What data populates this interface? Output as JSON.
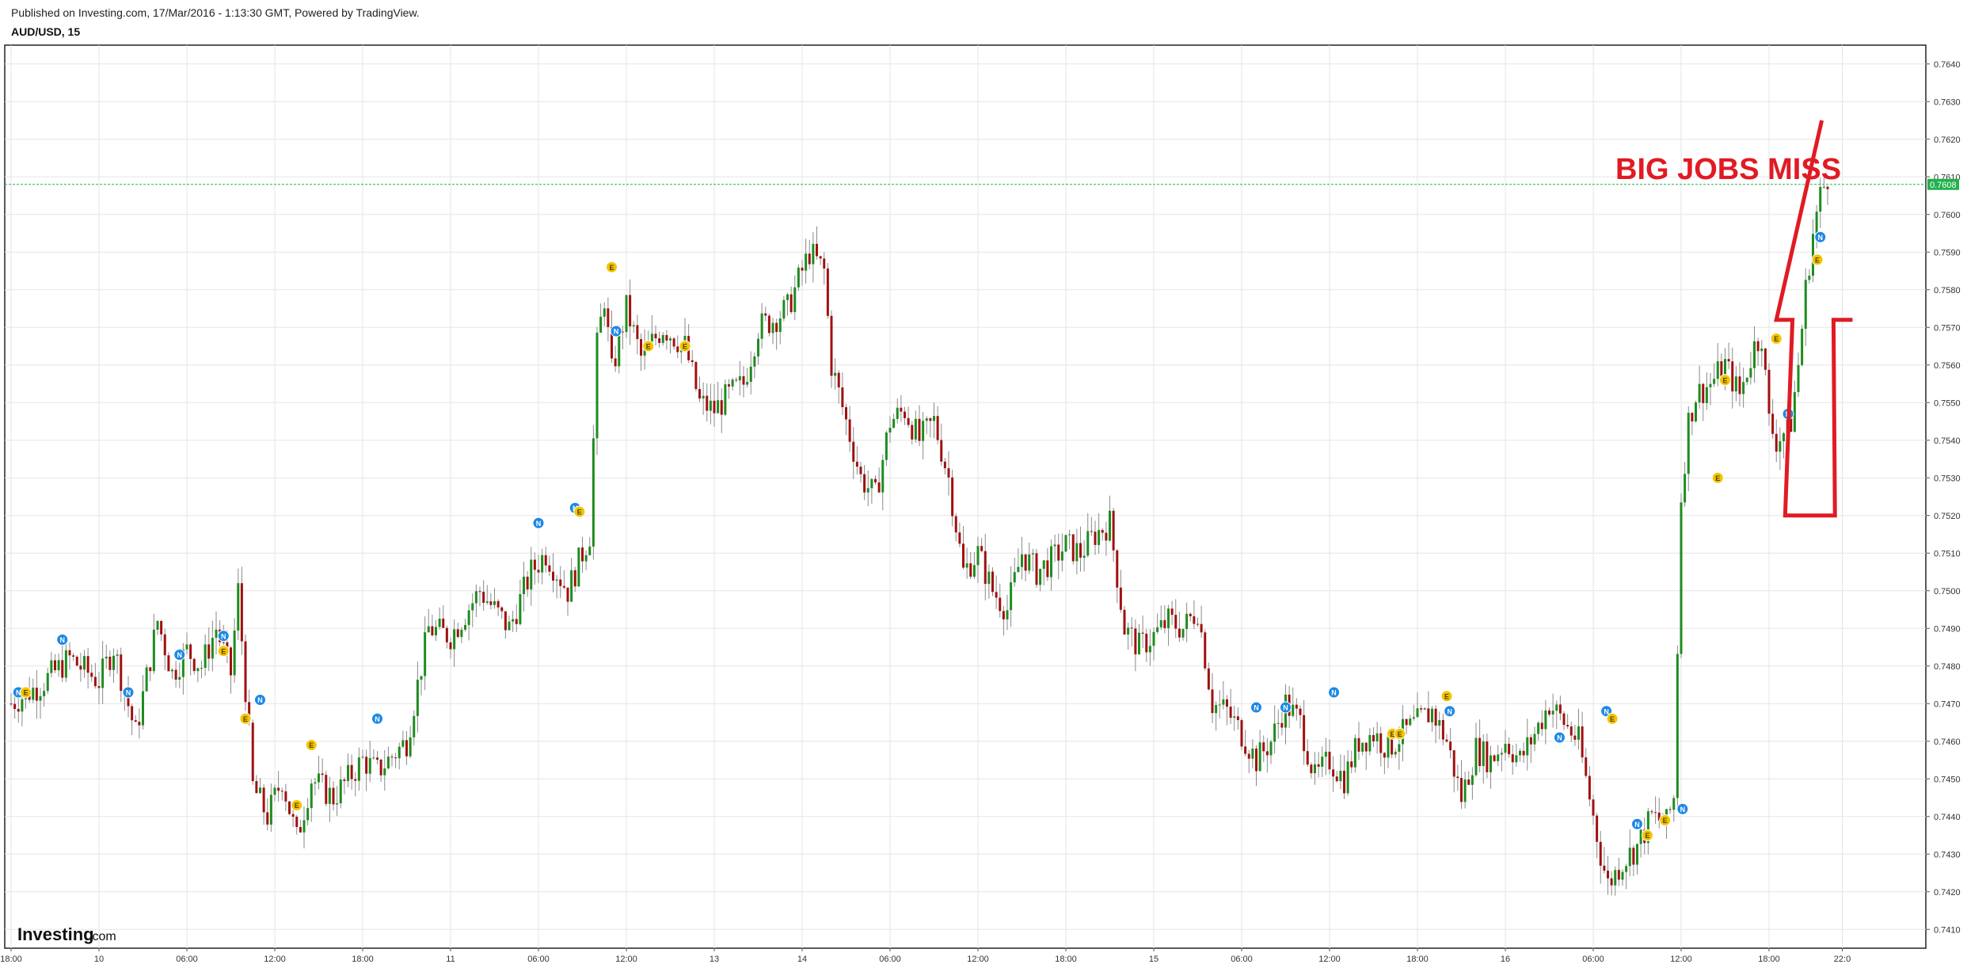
{
  "header": {
    "published": "Published on Investing.com, 17/Mar/2016 - 1:13:30 GMT, Powered by TradingView.",
    "symbol": "AUD/USD, 15"
  },
  "brand": {
    "logo_main": "Investing",
    "logo_suffix": ".com"
  },
  "annotation": {
    "text": "BIG JOBS MISS",
    "color": "#e01b24"
  },
  "last_price": {
    "label": "0.7608",
    "value": 0.7608,
    "color": "#22b14c"
  },
  "colors": {
    "up": "#1e8c1e",
    "down": "#a01010",
    "event_e": "#f2c500",
    "event_n": "#1e88e5",
    "grid": "#e6e6e6",
    "axis_text": "#333333"
  },
  "chart_data": {
    "type": "candlestick",
    "symbol": "AUD/USD",
    "interval": "15",
    "y_range": [
      0.7405,
      0.7645
    ],
    "y_ticks": [
      0.741,
      0.742,
      0.743,
      0.744,
      0.745,
      0.746,
      0.747,
      0.748,
      0.749,
      0.75,
      0.751,
      0.752,
      0.753,
      0.754,
      0.755,
      0.756,
      0.757,
      0.758,
      0.759,
      0.76,
      0.761,
      0.762,
      0.763,
      0.764
    ],
    "y_tick_labels": [
      "0.7410",
      "0.7420",
      "0.7430",
      "0.7440",
      "0.7450",
      "0.7460",
      "0.7470",
      "0.7480",
      "0.7490",
      "0.7500",
      "0.7510",
      "0.7520",
      "0.7530",
      "0.7540",
      "0.7550",
      "0.7560",
      "0.7570",
      "0.7580",
      "0.7590",
      "0.7600",
      "0.7610",
      "0.7620",
      "0.7630",
      "0.7640"
    ],
    "x_ticks": [
      {
        "t": 0,
        "label": "18:00"
      },
      {
        "t": 6,
        "label": "10"
      },
      {
        "t": 12,
        "label": "06:00"
      },
      {
        "t": 18,
        "label": "12:00"
      },
      {
        "t": 24,
        "label": "18:00"
      },
      {
        "t": 30,
        "label": "11"
      },
      {
        "t": 36,
        "label": "06:00"
      },
      {
        "t": 42,
        "label": "12:00"
      },
      {
        "t": 48,
        "label": "13"
      },
      {
        "t": 54,
        "label": "14"
      },
      {
        "t": 60,
        "label": "06:00"
      },
      {
        "t": 66,
        "label": "12:00"
      },
      {
        "t": 72,
        "label": "18:00"
      },
      {
        "t": 78,
        "label": "15"
      },
      {
        "t": 84,
        "label": "06:00"
      },
      {
        "t": 90,
        "label": "12:00"
      },
      {
        "t": 96,
        "label": "18:00"
      },
      {
        "t": 102,
        "label": "16"
      },
      {
        "t": 108,
        "label": "06:00"
      },
      {
        "t": 114,
        "label": "12:00"
      },
      {
        "t": 120,
        "label": "18:00"
      },
      {
        "t": 125,
        "label": "22:0"
      }
    ],
    "price_path": [
      [
        0,
        0.747
      ],
      [
        2,
        0.7475
      ],
      [
        4,
        0.7482
      ],
      [
        6,
        0.7476
      ],
      [
        7,
        0.7485
      ],
      [
        8.5,
        0.7462
      ],
      [
        10,
        0.7492
      ],
      [
        11,
        0.7478
      ],
      [
        12,
        0.7484
      ],
      [
        13,
        0.748
      ],
      [
        14,
        0.749
      ],
      [
        15,
        0.7478
      ],
      [
        15.5,
        0.75
      ],
      [
        16.5,
        0.7448
      ],
      [
        17.5,
        0.744
      ],
      [
        18.5,
        0.745
      ],
      [
        19.5,
        0.7434
      ],
      [
        20.5,
        0.745
      ],
      [
        22,
        0.7445
      ],
      [
        24,
        0.7455
      ],
      [
        25,
        0.7452
      ],
      [
        27,
        0.746
      ],
      [
        28.5,
        0.749
      ],
      [
        30,
        0.7488
      ],
      [
        32,
        0.75
      ],
      [
        34,
        0.749
      ],
      [
        35.5,
        0.7505
      ],
      [
        36.5,
        0.751
      ],
      [
        38,
        0.75
      ],
      [
        39.5,
        0.7515
      ],
      [
        40,
        0.7565
      ],
      [
        40.5,
        0.7578
      ],
      [
        41,
        0.7558
      ],
      [
        42,
        0.7575
      ],
      [
        43,
        0.7562
      ],
      [
        44.5,
        0.757
      ],
      [
        46,
        0.7565
      ],
      [
        47,
        0.755
      ],
      [
        48,
        0.7548
      ],
      [
        49,
        0.7552
      ],
      [
        50,
        0.7555
      ],
      [
        51,
        0.757
      ],
      [
        52,
        0.7572
      ],
      [
        53,
        0.7575
      ],
      [
        54.5,
        0.759
      ],
      [
        55.5,
        0.7585
      ],
      [
        56,
        0.756
      ],
      [
        57,
        0.7545
      ],
      [
        58,
        0.753
      ],
      [
        59,
        0.7525
      ],
      [
        60,
        0.7545
      ],
      [
        61,
        0.7548
      ],
      [
        62,
        0.754
      ],
      [
        63,
        0.7545
      ],
      [
        64,
        0.753
      ],
      [
        65,
        0.7505
      ],
      [
        66,
        0.751
      ],
      [
        67,
        0.75
      ],
      [
        68,
        0.7495
      ],
      [
        69,
        0.751
      ],
      [
        70,
        0.7505
      ],
      [
        71,
        0.7508
      ],
      [
        72,
        0.7512
      ],
      [
        73,
        0.751
      ],
      [
        74,
        0.7515
      ],
      [
        75,
        0.7518
      ],
      [
        76,
        0.749
      ],
      [
        77,
        0.7485
      ],
      [
        78,
        0.7488
      ],
      [
        79,
        0.7492
      ],
      [
        80,
        0.749
      ],
      [
        81,
        0.7495
      ],
      [
        82,
        0.747
      ],
      [
        83,
        0.7468
      ],
      [
        84,
        0.7462
      ],
      [
        85,
        0.7455
      ],
      [
        86,
        0.746
      ],
      [
        87,
        0.747
      ],
      [
        88,
        0.7465
      ],
      [
        89,
        0.745
      ],
      [
        90,
        0.7455
      ],
      [
        91,
        0.745
      ],
      [
        92,
        0.746
      ],
      [
        93,
        0.7462
      ],
      [
        94,
        0.7458
      ],
      [
        95,
        0.7462
      ],
      [
        96,
        0.7465
      ],
      [
        97,
        0.7468
      ],
      [
        98,
        0.746
      ],
      [
        99,
        0.7445
      ],
      [
        100,
        0.7458
      ],
      [
        101,
        0.7455
      ],
      [
        102,
        0.746
      ],
      [
        103,
        0.7455
      ],
      [
        104,
        0.7462
      ],
      [
        105,
        0.747
      ],
      [
        106,
        0.7465
      ],
      [
        107,
        0.746
      ],
      [
        107.5,
        0.745
      ],
      [
        108.5,
        0.743
      ],
      [
        109,
        0.7422
      ],
      [
        110,
        0.7428
      ],
      [
        111,
        0.7432
      ],
      [
        112,
        0.744
      ],
      [
        113,
        0.7438
      ],
      [
        113.5,
        0.7445
      ],
      [
        114,
        0.7525
      ],
      [
        114.5,
        0.7545
      ],
      [
        115,
        0.7552
      ],
      [
        116,
        0.7555
      ],
      [
        117,
        0.756
      ],
      [
        118,
        0.7552
      ],
      [
        119,
        0.7565
      ],
      [
        119.5,
        0.7568
      ],
      [
        120,
        0.7545
      ],
      [
        120.5,
        0.754
      ],
      [
        121,
        0.7542
      ],
      [
        121.5,
        0.7545
      ],
      [
        122,
        0.756
      ],
      [
        122.5,
        0.758
      ],
      [
        123,
        0.7595
      ],
      [
        123.5,
        0.7605
      ],
      [
        124,
        0.761
      ]
    ],
    "events": [
      {
        "t": 0.5,
        "p": 0.7473,
        "type": "N"
      },
      {
        "t": 1,
        "p": 0.7473,
        "type": "E"
      },
      {
        "t": 3.5,
        "p": 0.7487,
        "type": "N"
      },
      {
        "t": 8,
        "p": 0.7473,
        "type": "N"
      },
      {
        "t": 11.5,
        "p": 0.7483,
        "type": "N"
      },
      {
        "t": 14.5,
        "p": 0.7488,
        "type": "N"
      },
      {
        "t": 14.5,
        "p": 0.7484,
        "type": "E"
      },
      {
        "t": 16,
        "p": 0.7466,
        "type": "E"
      },
      {
        "t": 17,
        "p": 0.7471,
        "type": "N"
      },
      {
        "t": 19.5,
        "p": 0.7443,
        "type": "E"
      },
      {
        "t": 20.5,
        "p": 0.7459,
        "type": "E"
      },
      {
        "t": 25,
        "p": 0.7466,
        "type": "N"
      },
      {
        "t": 36,
        "p": 0.7518,
        "type": "N"
      },
      {
        "t": 38.5,
        "p": 0.7522,
        "type": "N"
      },
      {
        "t": 38.8,
        "p": 0.7521,
        "type": "E"
      },
      {
        "t": 41,
        "p": 0.7586,
        "type": "E"
      },
      {
        "t": 41.3,
        "p": 0.7569,
        "type": "N"
      },
      {
        "t": 43.5,
        "p": 0.7565,
        "type": "E"
      },
      {
        "t": 46,
        "p": 0.7565,
        "type": "E"
      },
      {
        "t": 85,
        "p": 0.7469,
        "type": "N"
      },
      {
        "t": 87,
        "p": 0.7469,
        "type": "N"
      },
      {
        "t": 90.3,
        "p": 0.7473,
        "type": "N"
      },
      {
        "t": 94.3,
        "p": 0.7462,
        "type": "E"
      },
      {
        "t": 94.8,
        "p": 0.7462,
        "type": "E"
      },
      {
        "t": 98,
        "p": 0.7472,
        "type": "E"
      },
      {
        "t": 98.2,
        "p": 0.7468,
        "type": "N"
      },
      {
        "t": 105.7,
        "p": 0.7461,
        "type": "N"
      },
      {
        "t": 108.9,
        "p": 0.7468,
        "type": "N"
      },
      {
        "t": 109.3,
        "p": 0.7466,
        "type": "E"
      },
      {
        "t": 111,
        "p": 0.7438,
        "type": "N"
      },
      {
        "t": 111.7,
        "p": 0.7435,
        "type": "E"
      },
      {
        "t": 112.9,
        "p": 0.7439,
        "type": "E"
      },
      {
        "t": 114.1,
        "p": 0.7442,
        "type": "N"
      },
      {
        "t": 116.5,
        "p": 0.753,
        "type": "E"
      },
      {
        "t": 117,
        "p": 0.7556,
        "type": "E"
      },
      {
        "t": 120.5,
        "p": 0.7567,
        "type": "E"
      },
      {
        "t": 121.3,
        "p": 0.7547,
        "type": "N"
      },
      {
        "t": 123.3,
        "p": 0.7588,
        "type": "E"
      },
      {
        "t": 123.5,
        "p": 0.7594,
        "type": "N"
      }
    ],
    "drawings": {
      "arrow": [
        [
          123.6,
          0.7625
        ],
        [
          120.5,
          0.7572
        ],
        [
          121.6,
          0.7572
        ],
        [
          121.1,
          0.752
        ],
        [
          124.5,
          0.752
        ],
        [
          124.4,
          0.7572
        ],
        [
          125.7,
          0.7572
        ]
      ]
    }
  }
}
